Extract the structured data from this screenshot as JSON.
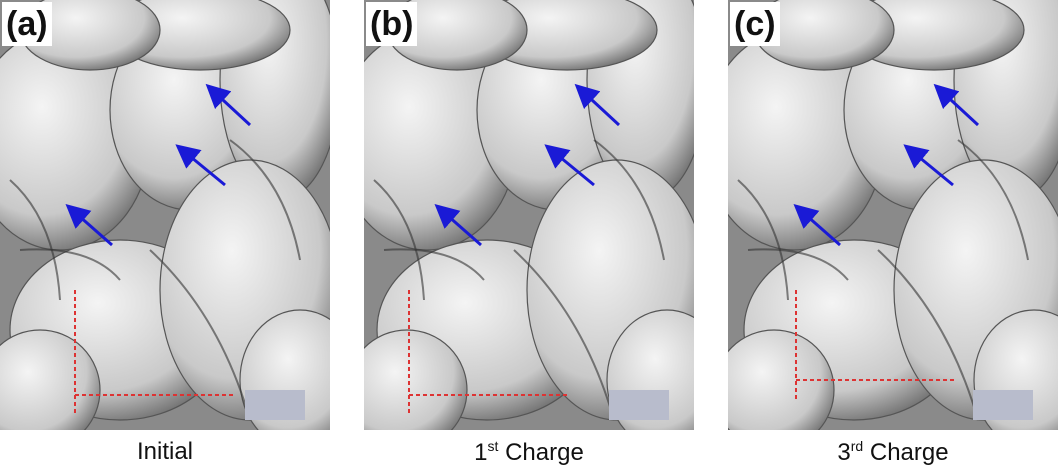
{
  "panels": [
    {
      "label": "(a)",
      "caption": {
        "main": "Initial"
      }
    },
    {
      "label": "(b)",
      "caption": {
        "main": "1",
        "sup": "st",
        "rest": " Charge"
      }
    },
    {
      "label": "(c)",
      "caption": {
        "main": "3",
        "sup": "rd",
        "rest": " Charge"
      }
    }
  ]
}
